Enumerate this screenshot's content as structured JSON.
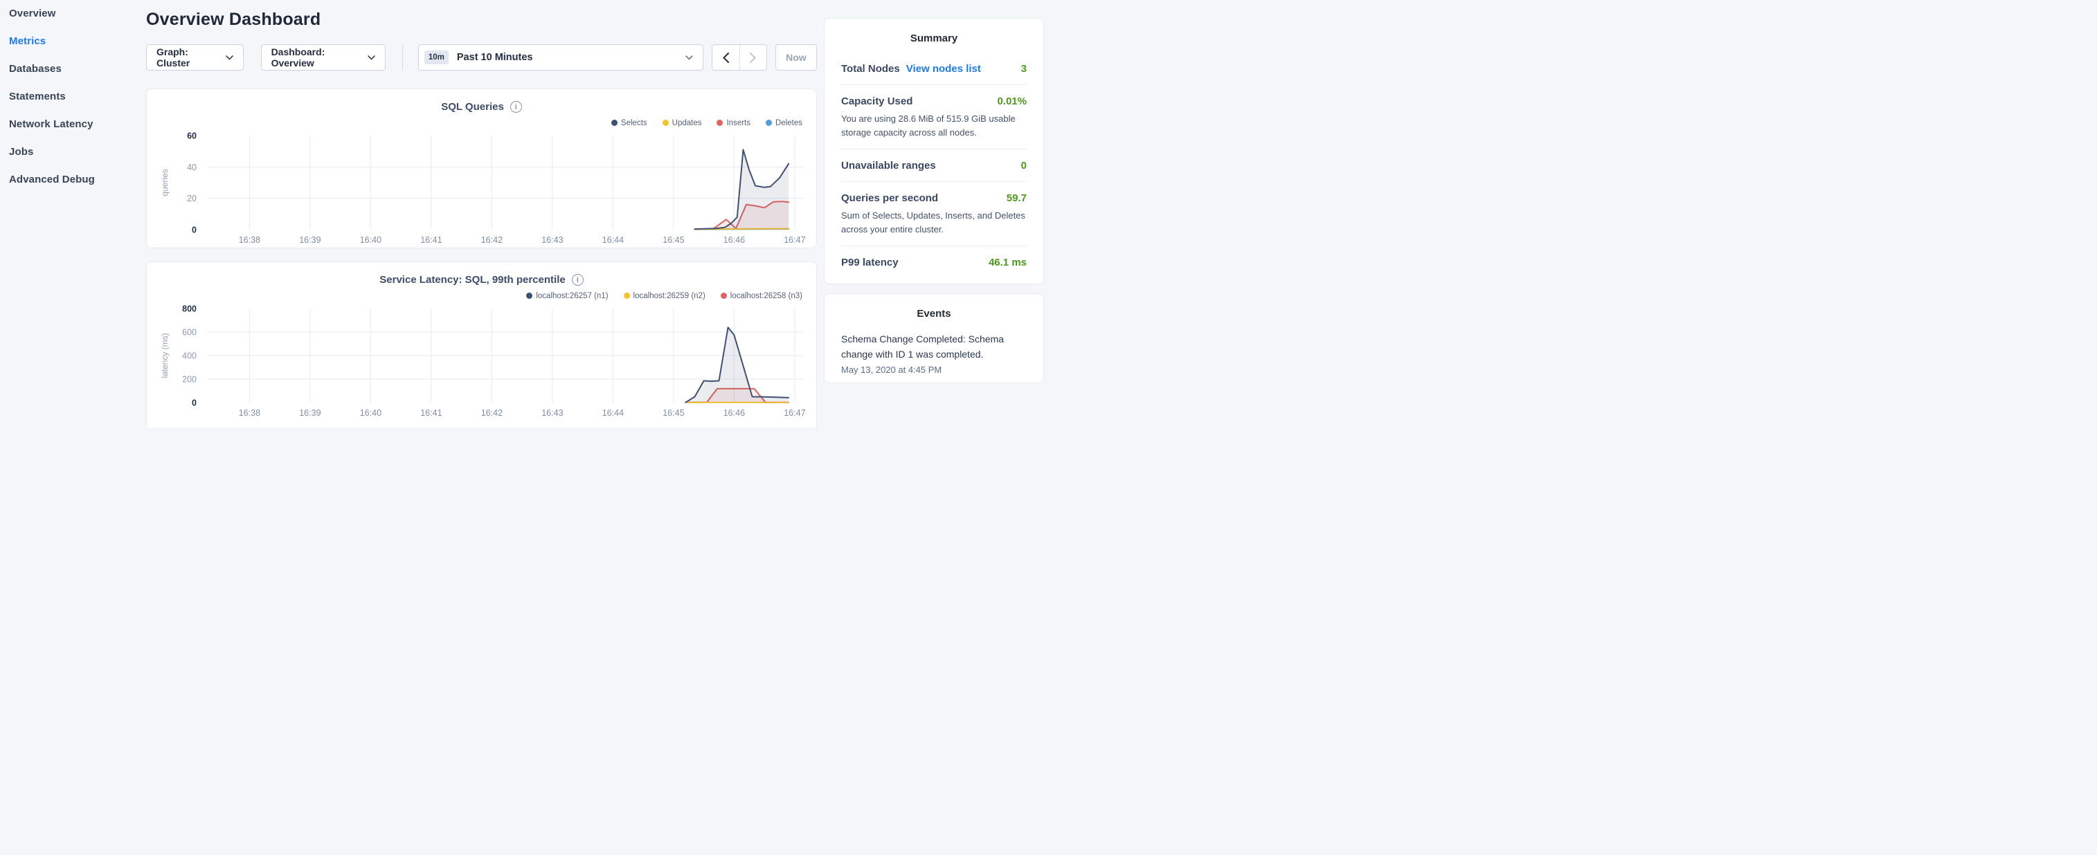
{
  "icons": {
    "info": "i"
  },
  "sidebar": {
    "items": [
      {
        "label": "Overview",
        "active": false
      },
      {
        "label": "Metrics",
        "active": true
      },
      {
        "label": "Databases",
        "active": false
      },
      {
        "label": "Statements",
        "active": false
      },
      {
        "label": "Network Latency",
        "active": false
      },
      {
        "label": "Jobs",
        "active": false
      },
      {
        "label": "Advanced Debug",
        "active": false
      }
    ]
  },
  "header": {
    "title": "Overview Dashboard"
  },
  "controls": {
    "graph_dropdown": "Graph: Cluster",
    "dashboard_dropdown": "Dashboard: Overview",
    "time_range": {
      "badge": "10m",
      "label": "Past 10 Minutes"
    },
    "now_button": "Now"
  },
  "summary": {
    "title": "Summary",
    "rows": [
      {
        "label": "Total Nodes",
        "link": "View nodes list",
        "value": "3"
      },
      {
        "label": "Capacity Used",
        "value": "0.01%",
        "description": "You are using 28.6 MiB of 515.9 GiB usable storage capacity across all nodes."
      },
      {
        "label": "Unavailable ranges",
        "value": "0"
      },
      {
        "label": "Queries per second",
        "value": "59.7",
        "description": "Sum of Selects, Updates, Inserts, and Deletes across your entire cluster."
      },
      {
        "label": "P99 latency",
        "value": "46.1 ms"
      }
    ]
  },
  "events": {
    "title": "Events",
    "items": [
      {
        "message": "Schema Change Completed: Schema change with ID 1 was completed.",
        "timestamp": "May 13, 2020 at 4:45 PM"
      }
    ]
  },
  "colors": {
    "accent_blue": "#1f7ced",
    "value_green": "#4c9a1c",
    "series_navy": "#3f5170",
    "series_yellow": "#f6c32b",
    "series_red": "#e5605f",
    "series_blue": "#519ed8"
  },
  "chart_data": [
    {
      "type": "area",
      "title": "SQL Queries",
      "ylabel": "queries",
      "ylim": [
        0,
        60
      ],
      "yticks": [
        0,
        20,
        40,
        60
      ],
      "xmin": -0.69,
      "xmax": 9.15,
      "grid": true,
      "legend_position": "top-right",
      "xticks": [
        {
          "x": 0,
          "label": "16:38"
        },
        {
          "x": 1,
          "label": "16:39"
        },
        {
          "x": 2,
          "label": "16:40"
        },
        {
          "x": 3,
          "label": "16:41"
        },
        {
          "x": 4,
          "label": "16:42"
        },
        {
          "x": 5,
          "label": "16:43"
        },
        {
          "x": 6,
          "label": "16:44"
        },
        {
          "x": 7,
          "label": "16:45"
        },
        {
          "x": 8,
          "label": "16:46"
        },
        {
          "x": 9,
          "label": "16:47"
        }
      ],
      "series": [
        {
          "name": "Selects",
          "color": "#3f5170",
          "fill": "rgba(63,81,112,0.11)",
          "points": [
            [
              7.35,
              0.4
            ],
            [
              7.7,
              0.8
            ],
            [
              7.85,
              1.5
            ],
            [
              7.95,
              4
            ],
            [
              8.05,
              8
            ],
            [
              8.15,
              51
            ],
            [
              8.25,
              38
            ],
            [
              8.35,
              28
            ],
            [
              8.5,
              27
            ],
            [
              8.6,
              27.5
            ],
            [
              8.75,
              33
            ],
            [
              8.9,
              42
            ]
          ]
        },
        {
          "name": "Updates",
          "color": "#f6c32b",
          "fill": "rgba(246,195,43,0.10)",
          "points": [
            [
              7.35,
              0.3
            ],
            [
              8.2,
              0.5
            ],
            [
              8.9,
              0.6
            ]
          ]
        },
        {
          "name": "Inserts",
          "color": "#e5605f",
          "fill": "rgba(229,96,95,0.10)",
          "points": [
            [
              7.35,
              0.3
            ],
            [
              7.65,
              0.5
            ],
            [
              7.87,
              6.5
            ],
            [
              8.03,
              0.7
            ],
            [
              8.2,
              16
            ],
            [
              8.35,
              15.2
            ],
            [
              8.5,
              14
            ],
            [
              8.65,
              17.8
            ],
            [
              8.8,
              18
            ],
            [
              8.9,
              17.5
            ]
          ]
        },
        {
          "name": "Deletes",
          "color": "#519ed8",
          "fill": "rgba(81,158,216,0.10)",
          "points": [
            [
              7.35,
              0.2
            ],
            [
              8.2,
              0.3
            ],
            [
              8.9,
              0.4
            ]
          ]
        }
      ]
    },
    {
      "type": "area",
      "title": "Service Latency: SQL, 99th percentile",
      "ylabel": "latency (ms)",
      "ylim": [
        0,
        800
      ],
      "yticks": [
        0,
        200,
        400,
        600,
        800
      ],
      "xmin": -0.69,
      "xmax": 9.15,
      "grid": true,
      "legend_position": "top-right",
      "xticks": [
        {
          "x": 0,
          "label": "16:38"
        },
        {
          "x": 1,
          "label": "16:39"
        },
        {
          "x": 2,
          "label": "16:40"
        },
        {
          "x": 3,
          "label": "16:41"
        },
        {
          "x": 4,
          "label": "16:42"
        },
        {
          "x": 5,
          "label": "16:43"
        },
        {
          "x": 6,
          "label": "16:44"
        },
        {
          "x": 7,
          "label": "16:45"
        },
        {
          "x": 8,
          "label": "16:46"
        },
        {
          "x": 9,
          "label": "16:47"
        }
      ],
      "series": [
        {
          "name": "localhost:26257 (n1)",
          "color": "#3f5170",
          "fill": "rgba(63,81,112,0.11)",
          "points": [
            [
              7.2,
              2
            ],
            [
              7.35,
              50
            ],
            [
              7.5,
              185
            ],
            [
              7.62,
              182
            ],
            [
              7.75,
              185
            ],
            [
              7.9,
              640
            ],
            [
              8.0,
              575
            ],
            [
              8.2,
              225
            ],
            [
              8.3,
              50
            ],
            [
              8.5,
              48
            ],
            [
              8.7,
              45
            ],
            [
              8.9,
              42
            ]
          ]
        },
        {
          "name": "localhost:26259 (n2)",
          "color": "#f6c32b",
          "fill": "rgba(246,195,43,0.10)",
          "points": [
            [
              7.2,
              1
            ],
            [
              8.0,
              2
            ],
            [
              8.9,
              2
            ]
          ]
        },
        {
          "name": "localhost:26258 (n3)",
          "color": "#e5605f",
          "fill": "rgba(229,96,95,0.10)",
          "points": [
            [
              7.2,
              1
            ],
            [
              7.55,
              3
            ],
            [
              7.72,
              118
            ],
            [
              8.33,
              118
            ],
            [
              8.52,
              1
            ],
            [
              8.9,
              1
            ]
          ]
        }
      ]
    }
  ]
}
